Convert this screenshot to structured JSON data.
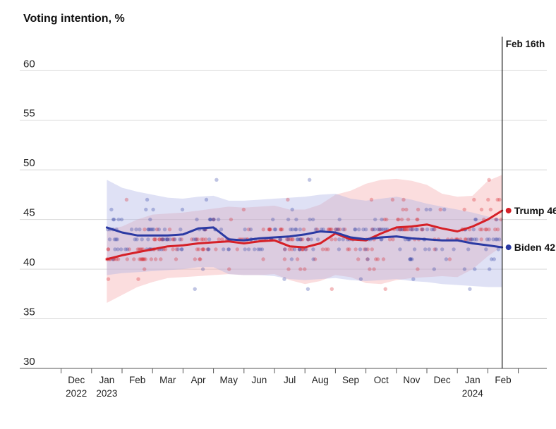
{
  "chart_data": {
    "type": "line",
    "title": "Voting intention, %",
    "ylabel": "Voting intention, %",
    "xlabel": "",
    "ylim": [
      30,
      63
    ],
    "yticks": [
      30,
      35,
      40,
      45,
      50,
      55,
      60
    ],
    "xlim": [
      0,
      16
    ],
    "month_labels": [
      {
        "x": 1,
        "line1": "Dec",
        "line2": "2022"
      },
      {
        "x": 2,
        "line1": "Jan",
        "line2": "2023"
      },
      {
        "x": 3,
        "line1": "Feb",
        "line2": ""
      },
      {
        "x": 4,
        "line1": "Mar",
        "line2": ""
      },
      {
        "x": 5,
        "line1": "Apr",
        "line2": ""
      },
      {
        "x": 6,
        "line1": "May",
        "line2": ""
      },
      {
        "x": 7,
        "line1": "Jun",
        "line2": ""
      },
      {
        "x": 8,
        "line1": "Jul",
        "line2": ""
      },
      {
        "x": 9,
        "line1": "Aug",
        "line2": ""
      },
      {
        "x": 10,
        "line1": "Sep",
        "line2": ""
      },
      {
        "x": 11,
        "line1": "Oct",
        "line2": ""
      },
      {
        "x": 12,
        "line1": "Nov",
        "line2": ""
      },
      {
        "x": 13,
        "line1": "Dec",
        "line2": ""
      },
      {
        "x": 14,
        "line1": "Jan",
        "line2": "2024"
      },
      {
        "x": 15,
        "line1": "Feb",
        "line2": ""
      }
    ],
    "marker": {
      "x": 14.97,
      "label": "Feb 16th"
    },
    "series": [
      {
        "name": "Trump",
        "end_label": "Trump 46",
        "color": "#d62027",
        "x": [
          2.0,
          2.5,
          3.0,
          3.5,
          4.0,
          4.5,
          5.0,
          5.5,
          6.0,
          6.5,
          7.0,
          7.5,
          8.0,
          8.5,
          9.0,
          9.5,
          10.0,
          10.5,
          11.0,
          11.5,
          12.0,
          12.5,
          13.0,
          13.5,
          14.0,
          14.5,
          14.97
        ],
        "values": [
          41.0,
          41.4,
          41.7,
          42.0,
          42.3,
          42.4,
          42.6,
          42.7,
          42.8,
          42.6,
          42.8,
          42.9,
          42.3,
          42.2,
          42.6,
          43.6,
          43.0,
          42.9,
          43.6,
          44.2,
          44.3,
          44.5,
          44.1,
          43.8,
          44.3,
          45.0,
          45.9
        ],
        "band_upper": [
          44.0,
          44.3,
          45.0,
          45.5,
          45.6,
          45.7,
          45.9,
          46.1,
          46.3,
          46.2,
          46.3,
          46.4,
          46.0,
          46.0,
          46.5,
          47.5,
          47.9,
          48.6,
          49.0,
          49.1,
          48.9,
          48.5,
          47.6,
          47.3,
          47.4,
          48.9,
          49.5
        ],
        "band_lower": [
          36.6,
          37.4,
          38.2,
          38.7,
          39.1,
          39.2,
          39.3,
          39.4,
          39.5,
          39.4,
          39.4,
          39.5,
          38.9,
          38.5,
          38.8,
          39.4,
          39.2,
          38.6,
          38.5,
          38.9,
          39.1,
          39.2,
          39.3,
          39.2,
          40.0,
          41.3,
          42.3
        ]
      },
      {
        "name": "Biden",
        "end_label": "Biden 42",
        "color": "#2b3aa3",
        "x": [
          2.0,
          2.5,
          3.0,
          3.5,
          4.0,
          4.5,
          5.0,
          5.5,
          6.0,
          6.5,
          7.0,
          7.5,
          8.0,
          8.5,
          9.0,
          9.5,
          10.0,
          10.5,
          11.0,
          11.5,
          12.0,
          12.5,
          13.0,
          13.5,
          14.0,
          14.5,
          14.97
        ],
        "values": [
          44.2,
          43.7,
          43.4,
          43.4,
          43.4,
          43.5,
          44.1,
          44.2,
          43.0,
          42.9,
          43.1,
          43.2,
          43.3,
          43.5,
          43.8,
          43.7,
          43.2,
          43.0,
          43.2,
          43.3,
          43.1,
          43.0,
          42.9,
          42.9,
          42.6,
          42.4,
          42.2
        ],
        "band_upper": [
          49.0,
          48.2,
          47.8,
          47.5,
          47.2,
          47.1,
          47.3,
          47.4,
          46.9,
          46.9,
          47.0,
          47.1,
          47.2,
          47.3,
          47.5,
          47.6,
          47.1,
          46.9,
          47.1,
          47.3,
          47.0,
          46.6,
          46.3,
          46.0,
          45.7,
          45.3,
          45.0
        ],
        "band_lower": [
          39.4,
          39.6,
          39.7,
          39.8,
          39.9,
          40.0,
          40.2,
          40.2,
          39.5,
          39.4,
          39.4,
          39.3,
          39.0,
          38.9,
          39.0,
          39.1,
          38.9,
          38.8,
          38.9,
          39.0,
          38.8,
          38.7,
          38.5,
          38.4,
          38.3,
          38.2,
          38.2
        ]
      }
    ],
    "poll_scatter": "individual poll results drawn as semi-transparent dots, clustered around each series' trend line"
  },
  "colors": {
    "trump": "#d62027",
    "biden": "#2b3aa3",
    "trump_band": "#f5a5a8",
    "biden_band": "#aab1e6",
    "grid": "#d9d9d9"
  }
}
